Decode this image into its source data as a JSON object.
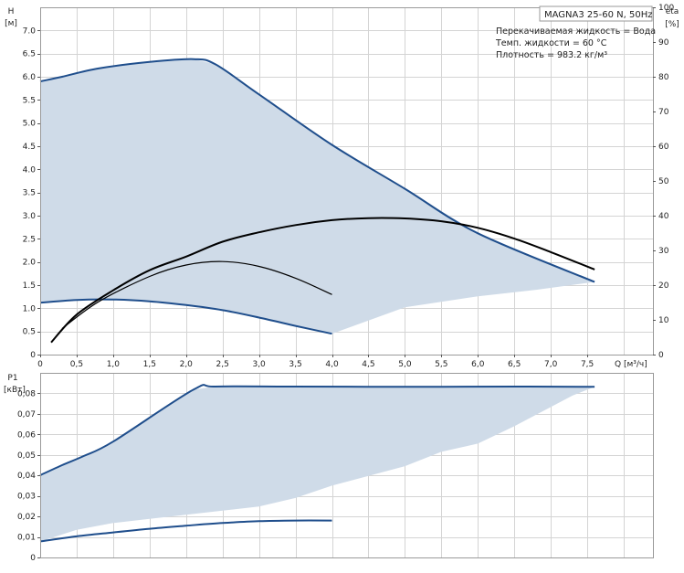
{
  "info": {
    "title": "MAGNA3 25-60 N, 50Hz",
    "lines": [
      "Перекачиваемая жидкость = Вода",
      "Темп. жидкости = 60 °C",
      "Плотность = 983.2 кг/м³"
    ]
  },
  "chart_data": [
    {
      "type": "line",
      "xlabel": "Q [м³/ч]",
      "ylabel": "H\n[м]",
      "y2label": "eta\n[%]",
      "xlim": [
        0,
        8.4
      ],
      "ylim": [
        0,
        7.5
      ],
      "y2lim": [
        0,
        100
      ],
      "x_ticks": [
        "0",
        "0,5",
        "1,0",
        "1,5",
        "2,0",
        "2,5",
        "3,0",
        "3,5",
        "4,0",
        "4,5",
        "5,0",
        "5,5",
        "6,0",
        "6,5",
        "7,0",
        "7,5"
      ],
      "y_ticks": [
        "0",
        "0.5",
        "1.0",
        "1.5",
        "2.0",
        "2.5",
        "3.0",
        "3.5",
        "4.0",
        "4.5",
        "5.0",
        "5.5",
        "6.0",
        "6.5",
        "7.0"
      ],
      "y2_ticks": [
        "0",
        "10",
        "20",
        "30",
        "40",
        "50",
        "60",
        "70",
        "80",
        "90",
        "100"
      ],
      "grid": true,
      "operating_area": {
        "x": [
          0,
          0.3,
          0.8,
          1.5,
          2.1,
          2.4,
          3.0,
          4.0,
          5.0,
          6.0,
          7.6,
          6.8,
          6.0,
          5.0,
          4.0,
          3.5,
          3.0,
          2.5,
          2.0,
          1.5,
          1.0,
          0.5,
          0
        ],
        "y": [
          5.9,
          6.0,
          6.18,
          6.32,
          6.38,
          6.27,
          5.62,
          4.53,
          3.58,
          2.62,
          1.57,
          1.4,
          1.26,
          1.02,
          0.45,
          0.62,
          0.8,
          0.96,
          1.07,
          1.15,
          1.19,
          1.18,
          1.12
        ]
      },
      "series": [
        {
          "curve": "max_head",
          "color": "#1f4e8c",
          "x": [
            0,
            0.3,
            0.8,
            1.5,
            2.1,
            2.4,
            3.0,
            4.0,
            5.0,
            6.0,
            7.6
          ],
          "y": [
            5.9,
            6.0,
            6.18,
            6.32,
            6.38,
            6.27,
            5.62,
            4.53,
            3.58,
            2.62,
            1.57
          ]
        },
        {
          "curve": "min_head",
          "color": "#1f4e8c",
          "x": [
            0,
            0.5,
            1.0,
            1.5,
            2.0,
            2.5,
            3.0,
            3.5,
            4.0
          ],
          "y": [
            1.12,
            1.18,
            1.19,
            1.15,
            1.07,
            0.96,
            0.8,
            0.62,
            0.45
          ]
        },
        {
          "curve": "max_efficiency",
          "axis": "y2",
          "color": "#000000",
          "x": [
            0.15,
            0.5,
            1.0,
            1.5,
            2.0,
            2.5,
            3.0,
            3.5,
            4.0,
            4.5,
            5.0,
            5.5,
            6.0,
            6.5,
            7.0,
            7.6
          ],
          "y": [
            3.5,
            11.5,
            18.5,
            24.3,
            28.2,
            32.5,
            35.2,
            37.3,
            38.7,
            39.3,
            39.2,
            38.4,
            36.5,
            33.4,
            29.5,
            24.5
          ]
        },
        {
          "curve": "min_efficiency",
          "axis": "y2",
          "color": "#000000",
          "x": [
            0.3,
            0.8,
            1.5,
            2.0,
            2.5,
            3.0,
            3.5,
            4.0
          ],
          "y": [
            7.5,
            15.2,
            22.5,
            25.8,
            26.8,
            25.4,
            22.0,
            17.3
          ]
        }
      ]
    },
    {
      "type": "line",
      "xlabel": "",
      "ylabel": "P1\n[кВт]",
      "xlim": [
        0,
        8.4
      ],
      "ylim": [
        0,
        0.09
      ],
      "y_ticks": [
        "0",
        "0,01",
        "0,02",
        "0,03",
        "0,04",
        "0,05",
        "0,06",
        "0,07",
        "0,08"
      ],
      "grid": true,
      "operating_area": {
        "x": [
          0,
          0.3,
          0.6,
          1.0,
          2.1,
          2.4,
          3.5,
          5.0,
          6.5,
          7.6,
          7.3,
          6.5,
          6.0,
          5.5,
          5.0,
          4.0,
          3.5,
          3.0,
          2.5,
          2.0,
          1.5,
          1.0,
          0.5,
          0
        ],
        "y": [
          0.0401,
          0.045,
          0.0495,
          0.0565,
          0.0818,
          0.0833,
          0.0833,
          0.0832,
          0.0833,
          0.0832,
          0.079,
          0.064,
          0.0555,
          0.0515,
          0.0445,
          0.035,
          0.029,
          0.0248,
          0.0228,
          0.0208,
          0.0188,
          0.0168,
          0.0135,
          0.0078
        ]
      },
      "series": [
        {
          "curve": "max_power",
          "color": "#1f4e8c",
          "x": [
            0,
            0.3,
            0.6,
            1.0,
            2.1,
            2.4,
            3.5,
            5.0,
            6.5,
            7.6
          ],
          "y": [
            0.0401,
            0.045,
            0.0495,
            0.0565,
            0.0818,
            0.0833,
            0.0833,
            0.0832,
            0.0833,
            0.0832
          ]
        },
        {
          "curve": "min_power",
          "color": "#1f4e8c",
          "x": [
            0,
            0.5,
            1.0,
            1.5,
            2.0,
            2.5,
            3.0,
            3.5,
            4.0
          ],
          "y": [
            0.0078,
            0.0103,
            0.0122,
            0.014,
            0.0155,
            0.0168,
            0.0177,
            0.018,
            0.018
          ]
        }
      ]
    }
  ]
}
